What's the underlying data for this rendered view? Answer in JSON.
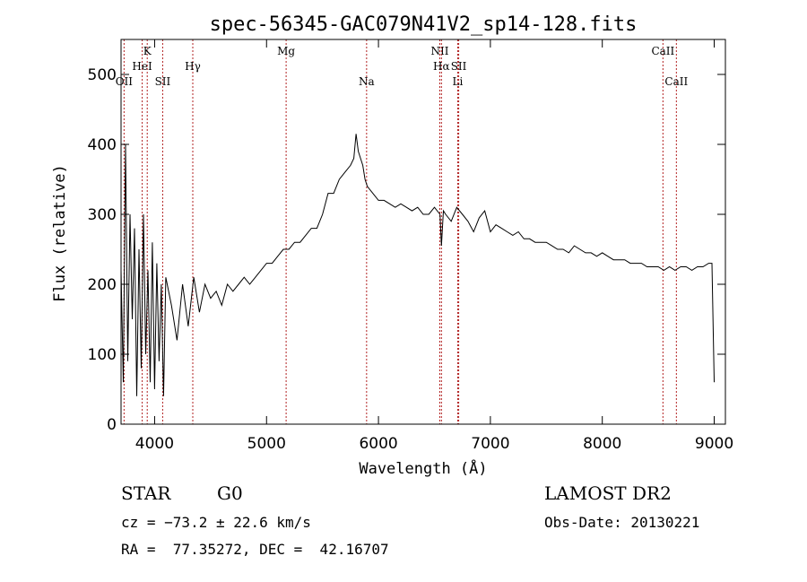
{
  "chart_data": {
    "type": "line",
    "title": "spec-56345-GAC079N41V2_sp14-128.fits",
    "xlabel": "Wavelength (Å)",
    "ylabel": "Flux (relative)",
    "xlim": [
      3700,
      9100
    ],
    "ylim": [
      0,
      550
    ],
    "x_ticks": [
      4000,
      5000,
      6000,
      7000,
      8000,
      9000
    ],
    "y_ticks": [
      0,
      100,
      200,
      300,
      400,
      500
    ],
    "grid": false,
    "line_color": "#000000",
    "marker_color": "#b22222",
    "spectrum": {
      "x": [
        3700,
        3720,
        3740,
        3760,
        3780,
        3800,
        3820,
        3840,
        3860,
        3880,
        3900,
        3920,
        3940,
        3960,
        3980,
        4000,
        4020,
        4040,
        4060,
        4080,
        4100,
        4150,
        4200,
        4250,
        4300,
        4350,
        4400,
        4450,
        4500,
        4550,
        4600,
        4650,
        4700,
        4750,
        4800,
        4850,
        4900,
        4950,
        5000,
        5050,
        5100,
        5150,
        5200,
        5250,
        5300,
        5350,
        5400,
        5450,
        5500,
        5550,
        5600,
        5650,
        5700,
        5750,
        5780,
        5800,
        5820,
        5840,
        5860,
        5880,
        5900,
        5950,
        6000,
        6050,
        6100,
        6150,
        6200,
        6250,
        6300,
        6350,
        6400,
        6450,
        6500,
        6550,
        6563,
        6580,
        6600,
        6650,
        6700,
        6750,
        6800,
        6850,
        6900,
        6950,
        7000,
        7050,
        7100,
        7150,
        7200,
        7250,
        7300,
        7350,
        7400,
        7450,
        7500,
        7550,
        7600,
        7650,
        7700,
        7750,
        7800,
        7850,
        7900,
        7950,
        8000,
        8050,
        8100,
        8150,
        8200,
        8250,
        8300,
        8350,
        8400,
        8450,
        8500,
        8550,
        8600,
        8650,
        8700,
        8750,
        8800,
        8850,
        8900,
        8950,
        8980,
        9000
      ],
      "y": [
        220,
        60,
        400,
        90,
        300,
        150,
        280,
        40,
        250,
        80,
        300,
        100,
        220,
        60,
        260,
        50,
        230,
        90,
        200,
        40,
        210,
        170,
        120,
        200,
        140,
        210,
        160,
        200,
        180,
        190,
        170,
        200,
        190,
        200,
        210,
        200,
        210,
        220,
        230,
        230,
        240,
        250,
        250,
        260,
        260,
        270,
        280,
        280,
        300,
        330,
        330,
        350,
        360,
        370,
        380,
        415,
        390,
        380,
        370,
        350,
        340,
        330,
        320,
        320,
        315,
        310,
        315,
        310,
        305,
        310,
        300,
        300,
        310,
        300,
        255,
        305,
        300,
        290,
        310,
        300,
        290,
        275,
        295,
        305,
        275,
        285,
        280,
        275,
        270,
        275,
        265,
        265,
        260,
        260,
        260,
        255,
        250,
        250,
        245,
        255,
        250,
        245,
        245,
        240,
        245,
        240,
        235,
        235,
        235,
        230,
        230,
        230,
        225,
        225,
        225,
        220,
        225,
        220,
        225,
        225,
        220,
        225,
        225,
        230,
        230,
        60
      ]
    },
    "lines": [
      {
        "name": "OII",
        "wavelength": 3727,
        "row": 3
      },
      {
        "name": "HeI",
        "wavelength": 3889,
        "row": 2
      },
      {
        "name": "K",
        "wavelength": 3934,
        "row": 1
      },
      {
        "name": "SII",
        "wavelength": 4072,
        "row": 3
      },
      {
        "name": "Hγ",
        "wavelength": 4341,
        "row": 2
      },
      {
        "name": "Mg",
        "wavelength": 5175,
        "row": 1
      },
      {
        "name": "Na",
        "wavelength": 5894,
        "row": 3
      },
      {
        "name": "NII",
        "wavelength": 6548,
        "row": 1
      },
      {
        "name": "Hα",
        "wavelength": 6563,
        "row": 2
      },
      {
        "name": "SII",
        "wavelength": 6717,
        "row": 2
      },
      {
        "name": "Li",
        "wavelength": 6708,
        "row": 3
      },
      {
        "name": "CaII",
        "wavelength": 8542,
        "row": 1
      },
      {
        "name": "CaII",
        "wavelength": 8662,
        "row": 3
      }
    ]
  },
  "info": {
    "object_class": "STAR",
    "subclass": "G0",
    "survey": "LAMOST DR2",
    "cz": "cz = −73.2 ± 22.6 km/s",
    "obs_date": "Obs-Date: 20130221",
    "coords": "RA =  77.35272, DEC =  42.16707"
  }
}
